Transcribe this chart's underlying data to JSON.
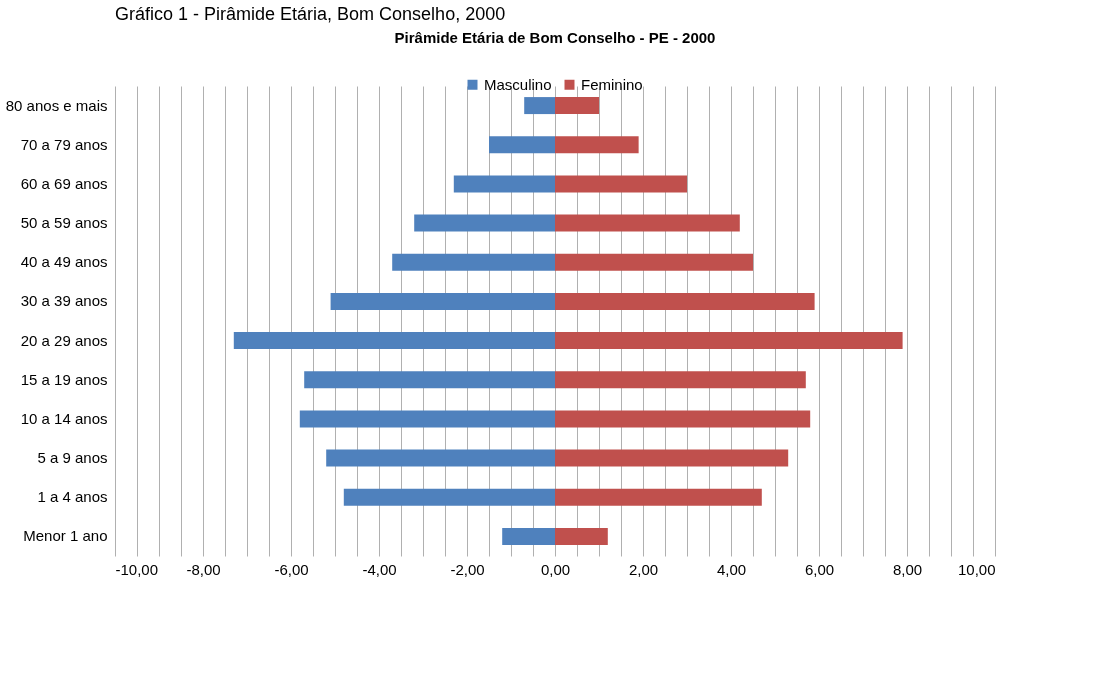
{
  "chart_data": {
    "type": "bar",
    "orientation": "horizontal",
    "title": "Pirâmide Etária de Bom Conselho - PE - 2000",
    "annotations": [
      "Gráfico 1 - Pirâmide Etária, Bom Conselho, 2000"
    ],
    "categories": [
      "80 anos e mais",
      "70 a 79 anos",
      "60 a 69 anos",
      "50 a 59 anos",
      "40 a 49 anos",
      "30 a 39 anos",
      "20 a 29 anos",
      "15 a 19 anos",
      "10 a 14 anos",
      "5 a 9 anos",
      "1 a 4 anos",
      "Menor 1 ano"
    ],
    "series": [
      {
        "name": "Masculino",
        "color": "#4f81bd",
        "values": [
          -0.7,
          -1.5,
          -2.3,
          -3.2,
          -3.7,
          -5.1,
          -7.3,
          -5.7,
          -5.8,
          -5.2,
          -4.8,
          -1.2
        ]
      },
      {
        "name": "Feminino",
        "color": "#c0504d",
        "values": [
          1.0,
          1.9,
          3.0,
          4.2,
          4.5,
          5.9,
          7.9,
          5.7,
          5.8,
          5.3,
          4.7,
          1.2
        ]
      }
    ],
    "xlim": [
      -10,
      10
    ],
    "xticks": [
      {
        "value": -10,
        "label": "-10,00"
      },
      {
        "value": -9.5,
        "label": null
      },
      {
        "value": -9,
        "label": null
      },
      {
        "value": -8.5,
        "label": null
      },
      {
        "value": -8,
        "label": "-8,00"
      },
      {
        "value": -7.5,
        "label": null
      },
      {
        "value": -7,
        "label": null
      },
      {
        "value": -6.5,
        "label": null
      },
      {
        "value": -6,
        "label": "-6,00"
      },
      {
        "value": -5.5,
        "label": null
      },
      {
        "value": -5,
        "label": null
      },
      {
        "value": -4.5,
        "label": null
      },
      {
        "value": -4,
        "label": "-4,00"
      },
      {
        "value": -3.5,
        "label": null
      },
      {
        "value": -3,
        "label": null
      },
      {
        "value": -2.5,
        "label": null
      },
      {
        "value": -2,
        "label": "-2,00"
      },
      {
        "value": -1.5,
        "label": null
      },
      {
        "value": -1,
        "label": null
      },
      {
        "value": -0.5,
        "label": null
      },
      {
        "value": 0,
        "label": "0,00"
      },
      {
        "value": 0.5,
        "label": null
      },
      {
        "value": 1,
        "label": null
      },
      {
        "value": 1.5,
        "label": null
      },
      {
        "value": 2,
        "label": "2,00"
      },
      {
        "value": 2.5,
        "label": null
      },
      {
        "value": 3,
        "label": null
      },
      {
        "value": 3.5,
        "label": null
      },
      {
        "value": 4,
        "label": "4,00"
      },
      {
        "value": 4.5,
        "label": null
      },
      {
        "value": 5,
        "label": null
      },
      {
        "value": 5.5,
        "label": null
      },
      {
        "value": 6,
        "label": "6,00"
      },
      {
        "value": 6.5,
        "label": null
      },
      {
        "value": 7,
        "label": null
      },
      {
        "value": 7.5,
        "label": null
      },
      {
        "value": 8,
        "label": "8,00"
      },
      {
        "value": 8.5,
        "label": null
      },
      {
        "value": 9,
        "label": null
      },
      {
        "value": 9.5,
        "label": null
      },
      {
        "value": 10,
        "label": "10,00"
      }
    ],
    "grid": "x",
    "legend": "top",
    "stacked": true
  }
}
